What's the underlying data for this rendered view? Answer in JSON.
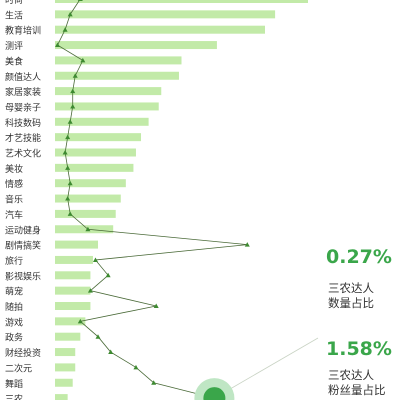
{
  "colors": {
    "bar": "#c2eaa8",
    "line": "#4a6a38",
    "marker": "#3d8a30",
    "accent": "#3aa64a",
    "highlight": "#3aa64a",
    "highlight_ring": "#bfe6c4",
    "label": "#333333"
  },
  "chart_data": {
    "type": "bar",
    "orientation": "horizontal",
    "categories": [
      "时尚",
      "生活",
      "教育培训",
      "测评",
      "美食",
      "颜值达人",
      "家居家装",
      "母婴亲子",
      "科技数码",
      "才艺技能",
      "艺术文化",
      "美妆",
      "情感",
      "音乐",
      "汽车",
      "运动健身",
      "剧情搞笑",
      "旅行",
      "影视娱乐",
      "萌宠",
      "随拍",
      "游戏",
      "政务",
      "财经投资",
      "二次元",
      "舞蹈",
      "三农"
    ],
    "bar_values": [
      100,
      87,
      83,
      64,
      50,
      49,
      42,
      41,
      37,
      34,
      32,
      31,
      28,
      26,
      24,
      23,
      17,
      15,
      14,
      14,
      14,
      12,
      10,
      8,
      8,
      7,
      5
    ],
    "line_values": [
      10,
      6,
      4,
      1,
      11,
      8,
      7,
      7,
      6,
      5,
      4,
      5,
      6,
      5,
      6,
      13,
      76,
      16,
      21,
      14,
      40,
      10,
      17,
      22,
      32,
      39,
      63
    ],
    "notes": "Values estimated as relative percentages of the longest bar; line is a secondary indicator series drawn over the bars."
  },
  "stats": [
    {
      "value": "0.27%",
      "label_line1": "三农达人",
      "label_line2": "数量占比"
    },
    {
      "value": "1.58%",
      "label_line1": "三农达人",
      "label_line2": "粉丝量占比"
    }
  ]
}
